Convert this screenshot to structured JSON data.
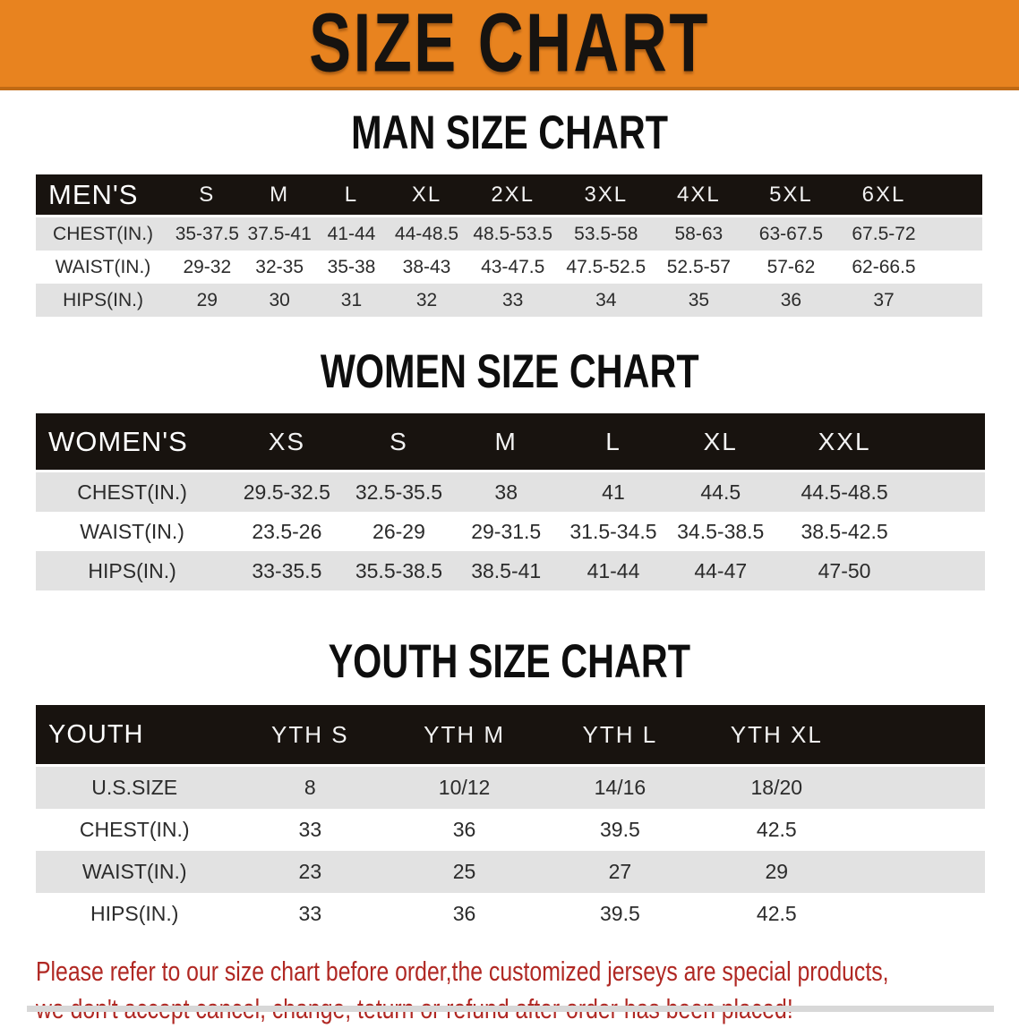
{
  "banner": {
    "title": "SIZE CHART"
  },
  "colors": {
    "banner_orange": "#E8831F",
    "banner_edge": "#C06A14",
    "header_black": "#18130F",
    "row_gray": "#E2E2E2",
    "footer_red": "#B02823"
  },
  "men": {
    "heading": "MAN SIZE CHART",
    "label": "MEN'S",
    "sizes": [
      "S",
      "M",
      "L",
      "XL",
      "2XL",
      "3XL",
      "4XL",
      "5XL",
      "6XL"
    ],
    "rows": [
      {
        "label": "CHEST(IN.)",
        "values": [
          "35-37.5",
          "37.5-41",
          "41-44",
          "44-48.5",
          "48.5-53.5",
          "53.5-58",
          "58-63",
          "63-67.5",
          "67.5-72"
        ]
      },
      {
        "label": "WAIST(IN.)",
        "values": [
          "29-32",
          "32-35",
          "35-38",
          "38-43",
          "43-47.5",
          "47.5-52.5",
          "52.5-57",
          "57-62",
          "62-66.5"
        ]
      },
      {
        "label": "HIPS(IN.)",
        "values": [
          "29",
          "30",
          "31",
          "32",
          "33",
          "34",
          "35",
          "36",
          "37"
        ]
      }
    ]
  },
  "women": {
    "heading": "WOMEN SIZE CHART",
    "label": "WOMEN'S",
    "sizes": [
      "XS",
      "S",
      "M",
      "L",
      "XL",
      "XXL"
    ],
    "rows": [
      {
        "label": "CHEST(IN.)",
        "values": [
          "29.5-32.5",
          "32.5-35.5",
          "38",
          "41",
          "44.5",
          "44.5-48.5"
        ]
      },
      {
        "label": "WAIST(IN.)",
        "values": [
          "23.5-26",
          "26-29",
          "29-31.5",
          "31.5-34.5",
          "34.5-38.5",
          "38.5-42.5"
        ]
      },
      {
        "label": "HIPS(IN.)",
        "values": [
          "33-35.5",
          "35.5-38.5",
          "38.5-41",
          "41-44",
          "44-47",
          "47-50"
        ]
      }
    ]
  },
  "youth": {
    "heading": "YOUTH SIZE CHART",
    "label": "YOUTH",
    "sizes": [
      "YTH S",
      "YTH M",
      "YTH L",
      "YTH XL"
    ],
    "rows": [
      {
        "label": "U.S.SIZE",
        "values": [
          "8",
          "10/12",
          "14/16",
          "18/20"
        ]
      },
      {
        "label": "CHEST(IN.)",
        "values": [
          "33",
          "36",
          "39.5",
          "42.5"
        ]
      },
      {
        "label": "WAIST(IN.)",
        "values": [
          "23",
          "25",
          "27",
          "29"
        ]
      },
      {
        "label": "HIPS(IN.)",
        "values": [
          "33",
          "36",
          "39.5",
          "42.5"
        ]
      }
    ]
  },
  "footer": {
    "line1": "Please refer to our size chart before order,the customized jerseys are special products,",
    "line2": "we don't accept cancel, change, teturn or refund after order has been placed!"
  }
}
